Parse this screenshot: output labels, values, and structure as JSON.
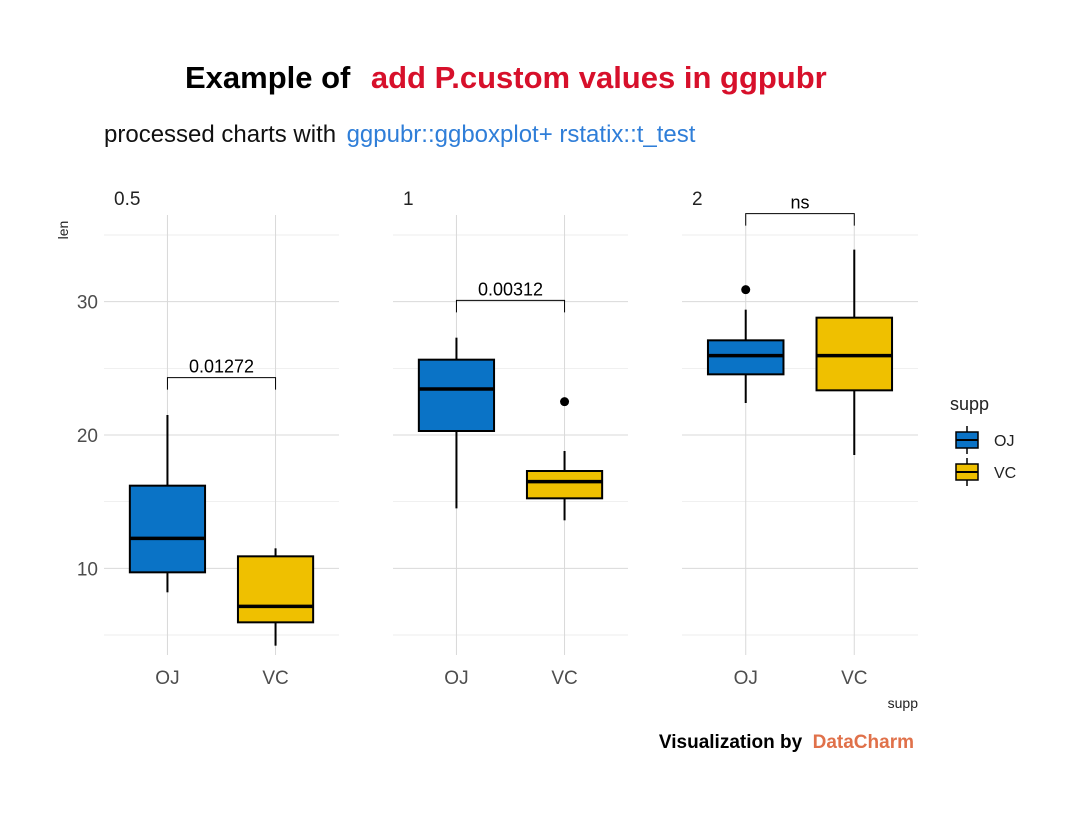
{
  "title": {
    "part1": "Example of",
    "part2": "add P.custom values in ggpubr",
    "part2_color": "#D7102B"
  },
  "subtitle": {
    "part1": "processed charts with",
    "part2": "ggpubr::ggboxplot+ rstatix::t_test",
    "part2_color": "#2F7ED8"
  },
  "caption": {
    "part1": "Visualization by",
    "part2": "DataCharm",
    "part2_color": "#E0714A"
  },
  "chart_data": {
    "type": "box",
    "facet_variable": "dose",
    "xlabel": "supp",
    "ylabel": "len",
    "ylim": [
      3.5,
      36.5
    ],
    "yticks": [
      10,
      20,
      30
    ],
    "grid": true,
    "legend": {
      "title": "supp",
      "position": "right",
      "entries": [
        {
          "label": "OJ",
          "color": "#0A73C6"
        },
        {
          "label": "VC",
          "color": "#EFC000"
        }
      ]
    },
    "categories": [
      "OJ",
      "VC"
    ],
    "panels": [
      {
        "label": "0.5",
        "boxes": [
          {
            "group": "OJ",
            "whisker_low": 8.2,
            "q1": 9.7,
            "median": 12.25,
            "q3": 16.2,
            "whisker_high": 21.5,
            "outliers": []
          },
          {
            "group": "VC",
            "whisker_low": 4.2,
            "q1": 5.95,
            "median": 7.15,
            "q3": 10.9,
            "whisker_high": 11.5,
            "outliers": []
          }
        ],
        "p_value": {
          "label": "0.01272",
          "y": 24.3
        }
      },
      {
        "label": "1",
        "boxes": [
          {
            "group": "OJ",
            "whisker_low": 14.5,
            "q1": 20.3,
            "median": 23.45,
            "q3": 25.65,
            "whisker_high": 27.3,
            "outliers": []
          },
          {
            "group": "VC",
            "whisker_low": 13.6,
            "q1": 15.25,
            "median": 16.5,
            "q3": 17.3,
            "whisker_high": 18.8,
            "outliers": [
              22.5
            ]
          }
        ],
        "p_value": {
          "label": "0.00312",
          "y": 30.1
        }
      },
      {
        "label": "2",
        "boxes": [
          {
            "group": "OJ",
            "whisker_low": 22.4,
            "q1": 24.55,
            "median": 25.95,
            "q3": 27.1,
            "whisker_high": 29.4,
            "outliers": [
              30.9
            ]
          },
          {
            "group": "VC",
            "whisker_low": 18.5,
            "q1": 23.35,
            "median": 25.95,
            "q3": 28.8,
            "whisker_high": 33.9,
            "outliers": []
          }
        ],
        "p_value": {
          "label": "ns",
          "y": 36.6
        }
      }
    ]
  }
}
